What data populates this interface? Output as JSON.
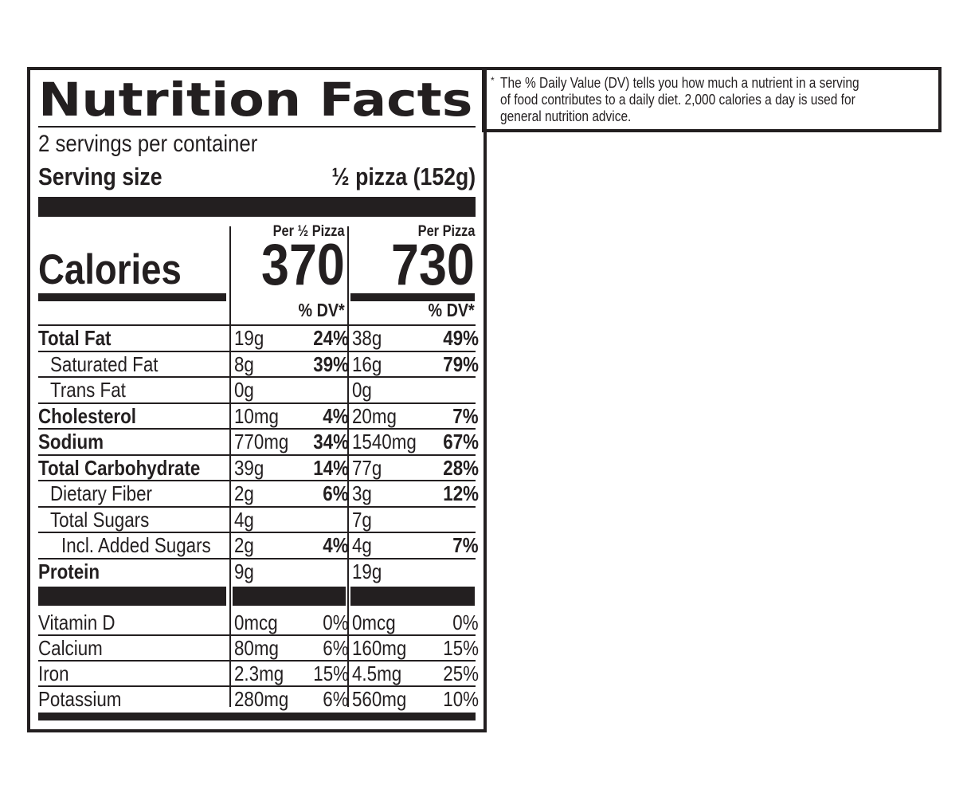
{
  "label": {
    "title": "Nutrition Facts",
    "servings_per_container": "2 servings per container",
    "serving_size_label": "Serving size",
    "serving_size_value": "½ pizza (152g)",
    "calories_label": "Calories",
    "columns": [
      {
        "header": "Per ½ Pizza",
        "calories": "370",
        "dv_header": "% DV*"
      },
      {
        "header": "Per Pizza",
        "calories": "730",
        "dv_header": "% DV*"
      }
    ],
    "nutrients": [
      {
        "name": "Total Fat",
        "indent": 0,
        "bold": true,
        "values": [
          {
            "amount": "19g",
            "dv": "24%"
          },
          {
            "amount": "38g",
            "dv": "49%"
          }
        ]
      },
      {
        "name": "Saturated Fat",
        "indent": 1,
        "bold": false,
        "values": [
          {
            "amount": "8g",
            "dv": "39%"
          },
          {
            "amount": "16g",
            "dv": "79%"
          }
        ]
      },
      {
        "name": "Trans Fat",
        "indent": 1,
        "bold": false,
        "values": [
          {
            "amount": "0g",
            "dv": ""
          },
          {
            "amount": "0g",
            "dv": ""
          }
        ]
      },
      {
        "name": "Cholesterol",
        "indent": 0,
        "bold": true,
        "values": [
          {
            "amount": "10mg",
            "dv": "4%"
          },
          {
            "amount": "20mg",
            "dv": "7%"
          }
        ]
      },
      {
        "name": "Sodium",
        "indent": 0,
        "bold": true,
        "values": [
          {
            "amount": "770mg",
            "dv": "34%"
          },
          {
            "amount": "1540mg",
            "dv": "67%"
          }
        ]
      },
      {
        "name": "Total Carbohydrate",
        "indent": 0,
        "bold": true,
        "values": [
          {
            "amount": "39g",
            "dv": "14%"
          },
          {
            "amount": "77g",
            "dv": "28%"
          }
        ]
      },
      {
        "name": "Dietary Fiber",
        "indent": 1,
        "bold": false,
        "values": [
          {
            "amount": "2g",
            "dv": "6%"
          },
          {
            "amount": "3g",
            "dv": "12%"
          }
        ]
      },
      {
        "name": "Total Sugars",
        "indent": 1,
        "bold": false,
        "values": [
          {
            "amount": "4g",
            "dv": ""
          },
          {
            "amount": "7g",
            "dv": ""
          }
        ]
      },
      {
        "name": "Incl. Added Sugars",
        "indent": 2,
        "bold": false,
        "values": [
          {
            "amount": "2g",
            "dv": "4%"
          },
          {
            "amount": "4g",
            "dv": "7%"
          }
        ]
      },
      {
        "name": "Protein",
        "indent": 0,
        "bold": true,
        "values": [
          {
            "amount": "9g",
            "dv": ""
          },
          {
            "amount": "19g",
            "dv": ""
          }
        ]
      }
    ],
    "vitamins": [
      {
        "name": "Vitamin D",
        "values": [
          {
            "amount": "0mcg",
            "dv": "0%"
          },
          {
            "amount": "0mcg",
            "dv": "0%"
          }
        ]
      },
      {
        "name": "Calcium",
        "values": [
          {
            "amount": "80mg",
            "dv": "6%"
          },
          {
            "amount": "160mg",
            "dv": "15%"
          }
        ]
      },
      {
        "name": "Iron",
        "values": [
          {
            "amount": "2.3mg",
            "dv": "15%"
          },
          {
            "amount": "4.5mg",
            "dv": "25%"
          }
        ]
      },
      {
        "name": "Potassium",
        "values": [
          {
            "amount": "280mg",
            "dv": "6%"
          },
          {
            "amount": "560mg",
            "dv": "10%"
          }
        ]
      }
    ]
  },
  "footnote": {
    "star": "*",
    "lines": [
      "The % Daily Value (DV) tells you how much a nutrient in a serving",
      "of food contributes to a daily diet. 2,000 calories a day is used for",
      "general nutrition advice."
    ]
  }
}
